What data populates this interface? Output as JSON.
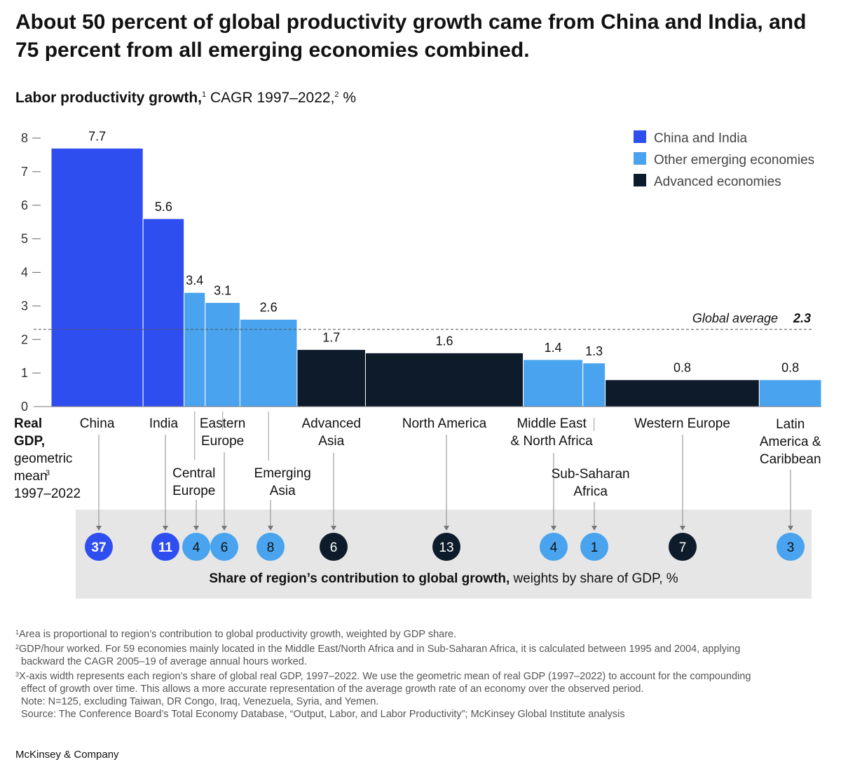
{
  "title": "About 50 percent of global productivity growth came from China and India, and 75 percent from all emerging economies combined.",
  "chart_data": {
    "type": "bar",
    "subtitle": {
      "bold": "Labor productivity growth,",
      "sup1": "1",
      "rest": " CAGR 1997–2022,",
      "sup2": "2",
      "unit": " %"
    },
    "ylim": [
      0,
      8
    ],
    "yticks": [
      "0",
      "1",
      "2",
      "3",
      "4",
      "5",
      "6",
      "7",
      "8"
    ],
    "x_axis_note": {
      "bold_lines": [
        "Real",
        "GDP,"
      ],
      "lines": [
        "geometric",
        "mean",
        "1997–2022"
      ],
      "sup": "3"
    },
    "legend": {
      "position": "top-right",
      "items": [
        {
          "label": "China and India",
          "color": "#2f4ef0"
        },
        {
          "label": "Other emerging economies",
          "color": "#4aa3ee"
        },
        {
          "label": "Advanced economies",
          "color": "#0d1b2a"
        }
      ]
    },
    "global_average": {
      "label": "Global average",
      "value": 2.3,
      "value_label": "2.3"
    },
    "share_panel": {
      "caption_bold": "Share of region’s contribution to global growth,",
      "caption_rest": " weights by share of GDP, %"
    },
    "regions": [
      {
        "name_lines": [
          "China"
        ],
        "growth": 7.7,
        "growth_label": "7.7",
        "gdp_width": 37,
        "share_label": "37",
        "group": "China and India"
      },
      {
        "name_lines": [
          "India"
        ],
        "growth": 5.6,
        "growth_label": "5.6",
        "gdp_width": 16.5,
        "share_label": "11",
        "group": "China and India"
      },
      {
        "name_lines": [
          "Central",
          "Europe"
        ],
        "growth": 3.4,
        "growth_label": "3.4",
        "gdp_width": 8.5,
        "share_label": "4",
        "group": "Other emerging economies"
      },
      {
        "name_lines": [
          "Eastern",
          "Europe"
        ],
        "growth": 3.1,
        "growth_label": "3.1",
        "gdp_width": 14,
        "share_label": "6",
        "group": "Other emerging economies"
      },
      {
        "name_lines": [
          "Emerging",
          "Asia"
        ],
        "growth": 2.6,
        "growth_label": "2.6",
        "gdp_width": 23,
        "share_label": "8",
        "group": "Other emerging economies"
      },
      {
        "name_lines": [
          "Advanced",
          "Asia"
        ],
        "growth": 1.7,
        "growth_label": "1.7",
        "gdp_width": 27.5,
        "share_label": "6",
        "group": "Advanced economies"
      },
      {
        "name_lines": [
          "North America"
        ],
        "growth": 1.6,
        "growth_label": "1.6",
        "gdp_width": 63.5,
        "share_label": "13",
        "group": "Advanced economies"
      },
      {
        "name_lines": [
          "Middle East",
          "& North Africa"
        ],
        "growth": 1.4,
        "growth_label": "1.4",
        "gdp_width": 24,
        "share_label": "4",
        "group": "Other emerging economies"
      },
      {
        "name_lines": [
          "Sub-Saharan",
          "Africa"
        ],
        "growth": 1.3,
        "growth_label": "1.3",
        "gdp_width": 9,
        "share_label": "1",
        "group": "Other emerging economies"
      },
      {
        "name_lines": [
          "Western Europe"
        ],
        "growth": 0.8,
        "growth_label": "0.8",
        "gdp_width": 62,
        "share_label": "7",
        "group": "Advanced economies"
      },
      {
        "name_lines": [
          "Latin",
          "America &",
          "Caribbean"
        ],
        "growth": 0.8,
        "growth_label": "0.8",
        "gdp_width": 25,
        "share_label": "3",
        "group": "Other emerging economies"
      }
    ]
  },
  "footnotes": [
    {
      "sup": "1",
      "text": "Area is proportional to region’s contribution to global productivity growth, weighted by GDP share."
    },
    {
      "sup": "2",
      "text": "GDP/hour worked. For 59 economies mainly located in the Middle East/North Africa and in Sub-Saharan Africa, it is calculated between 1995 and 2004, applying"
    },
    {
      "sup": "",
      "text": "backward the CAGR 2005–19 of average annual hours worked."
    },
    {
      "sup": "3",
      "text": "X-axis width represents each region’s share of global real GDP, 1997–2022. We use the geometric mean of real GDP (1997–2022) to account for the compounding"
    },
    {
      "sup": "",
      "text": "effect of growth over time. This allows a more accurate representation of the average growth rate of an economy over the observed period."
    },
    {
      "sup": "",
      "text": "Note: N=125, excluding Taiwan, DR Congo, Iraq, Venezuela, Syria, and Yemen."
    },
    {
      "sup": "",
      "text": "Source: The Conference Board’s Total Economy Database, “Output, Labor, and Labor Productivity”; McKinsey Global Institute analysis"
    }
  ],
  "brand": "McKinsey & Company"
}
